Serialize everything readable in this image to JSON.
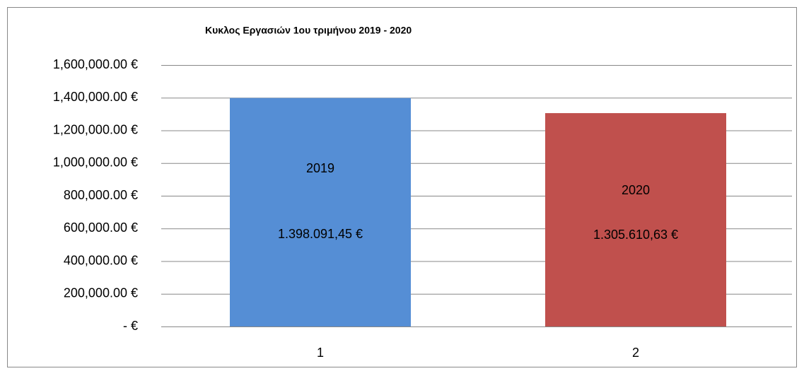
{
  "chart_data": {
    "type": "bar",
    "title": "Κυκλος Εργασιών 1ου τριμήνου 2019 - 2020",
    "categories": [
      "1",
      "2"
    ],
    "bar_labels": [
      "2019",
      "2020"
    ],
    "values": [
      1398091.45,
      1305610.63
    ],
    "value_labels": [
      "1.398.091,45 €",
      "1.305.610,63 €"
    ],
    "colors": [
      "#558ed5",
      "#c0504d"
    ],
    "ylim": [
      0,
      1600000
    ],
    "yticks": [
      {
        "value": 0,
        "label": "-  €"
      },
      {
        "value": 200000,
        "label": "200,000.00 €"
      },
      {
        "value": 400000,
        "label": "400,000.00 €"
      },
      {
        "value": 600000,
        "label": "600,000.00 €"
      },
      {
        "value": 800000,
        "label": "800,000.00 €"
      },
      {
        "value": 1000000,
        "label": "1,000,000.00 €"
      },
      {
        "value": 1200000,
        "label": "1,200,000.00 €"
      },
      {
        "value": 1400000,
        "label": "1,400,000.00 €"
      },
      {
        "value": 1600000,
        "label": "1,600,000.00 €"
      }
    ],
    "grid": true
  }
}
